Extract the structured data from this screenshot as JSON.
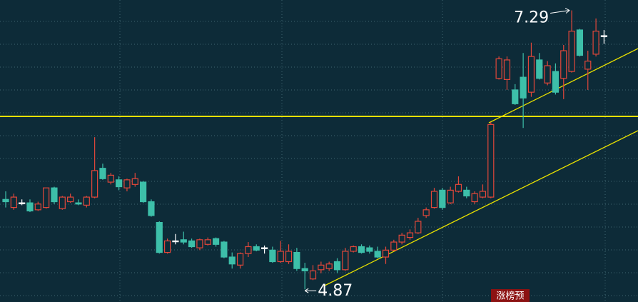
{
  "chart_data": {
    "type": "candlestick",
    "ylim": [
      4.76,
      7.38
    ],
    "up_color": "#e2473a",
    "down_color": "#3dbfa9",
    "flat_color": "#ffffff",
    "open": [
      5.65,
      5.58,
      5.62,
      5.62,
      5.56,
      5.58,
      5.75,
      5.57,
      5.63,
      5.62,
      5.6,
      5.67,
      5.92,
      5.8,
      5.82,
      5.75,
      5.78,
      5.8,
      5.63,
      5.45,
      5.19,
      5.29,
      5.3,
      5.29,
      5.23,
      5.26,
      5.31,
      5.28,
      5.15,
      5.08,
      5.18,
      5.24,
      5.23,
      5.21,
      5.11,
      5.11,
      5.19,
      5.05,
      4.96,
      5.04,
      5.05,
      5.11,
      5.04,
      5.2,
      5.24,
      5.23,
      5.2,
      5.15,
      5.21,
      5.28,
      5.32,
      5.36,
      5.51,
      5.58,
      5.73,
      5.62,
      5.72,
      5.73,
      5.63,
      5.67,
      5.67,
      6.7,
      6.69,
      6.6,
      6.71,
      6.58,
      6.86,
      6.66,
      6.76,
      6.7,
      6.76,
      7.12,
      6.78,
      6.91,
      7.07
    ],
    "high": [
      5.72,
      5.7,
      5.65,
      5.65,
      5.63,
      5.75,
      5.76,
      5.68,
      5.7,
      5.65,
      5.68,
      6.19,
      5.96,
      5.88,
      5.85,
      5.83,
      5.88,
      5.81,
      5.65,
      5.46,
      5.31,
      5.35,
      5.37,
      5.31,
      5.31,
      5.32,
      5.32,
      5.29,
      5.19,
      5.19,
      5.28,
      5.26,
      5.25,
      5.24,
      5.29,
      5.26,
      5.23,
      5.1,
      5.08,
      5.11,
      5.11,
      5.14,
      5.23,
      5.25,
      5.26,
      5.25,
      5.24,
      5.24,
      5.3,
      5.36,
      5.39,
      5.49,
      5.58,
      5.75,
      5.75,
      5.76,
      5.85,
      5.76,
      5.72,
      5.78,
      6.32,
      6.89,
      6.89,
      6.65,
      6.92,
      7.01,
      6.92,
      6.85,
      6.83,
      6.99,
      7.29,
      7.13,
      6.94,
      7.22,
      7.12
    ],
    "low": [
      5.58,
      5.56,
      5.6,
      5.54,
      5.55,
      5.57,
      5.61,
      5.56,
      5.62,
      5.6,
      5.58,
      5.66,
      5.82,
      5.78,
      5.73,
      5.72,
      5.76,
      5.62,
      5.5,
      5.18,
      5.18,
      5.26,
      5.26,
      5.23,
      5.21,
      5.25,
      5.24,
      5.14,
      5.05,
      5.05,
      5.15,
      5.2,
      5.18,
      5.1,
      5.1,
      5.09,
      5.03,
      4.87,
      4.95,
      5.01,
      5.03,
      5.01,
      5.03,
      5.19,
      5.18,
      5.18,
      5.14,
      5.09,
      5.2,
      5.26,
      5.3,
      5.35,
      5.49,
      5.57,
      5.56,
      5.61,
      5.71,
      5.66,
      5.61,
      5.66,
      5.66,
      6.69,
      6.6,
      6.47,
      6.27,
      6.54,
      6.69,
      6.64,
      6.56,
      6.52,
      6.75,
      6.89,
      6.6,
      6.89,
      7.0
    ],
    "close": [
      5.63,
      5.67,
      5.62,
      5.55,
      5.61,
      5.75,
      5.63,
      5.67,
      5.67,
      5.61,
      5.67,
      5.9,
      5.83,
      5.86,
      5.76,
      5.82,
      5.83,
      5.63,
      5.51,
      5.19,
      5.29,
      5.29,
      5.28,
      5.24,
      5.3,
      5.3,
      5.26,
      5.15,
      5.09,
      5.18,
      5.24,
      5.21,
      5.23,
      5.11,
      5.2,
      5.2,
      5.05,
      5.03,
      5.03,
      5.08,
      5.09,
      5.04,
      5.2,
      5.24,
      5.19,
      5.2,
      5.15,
      5.21,
      5.28,
      5.34,
      5.36,
      5.46,
      5.56,
      5.72,
      5.58,
      5.73,
      5.78,
      5.68,
      5.7,
      5.72,
      6.3,
      6.87,
      6.86,
      6.48,
      6.53,
      6.89,
      6.7,
      6.81,
      6.58,
      6.94,
      7.11,
      6.9,
      6.85,
      7.11,
      7.07
    ],
    "tag": "涨榜预"
  }
}
